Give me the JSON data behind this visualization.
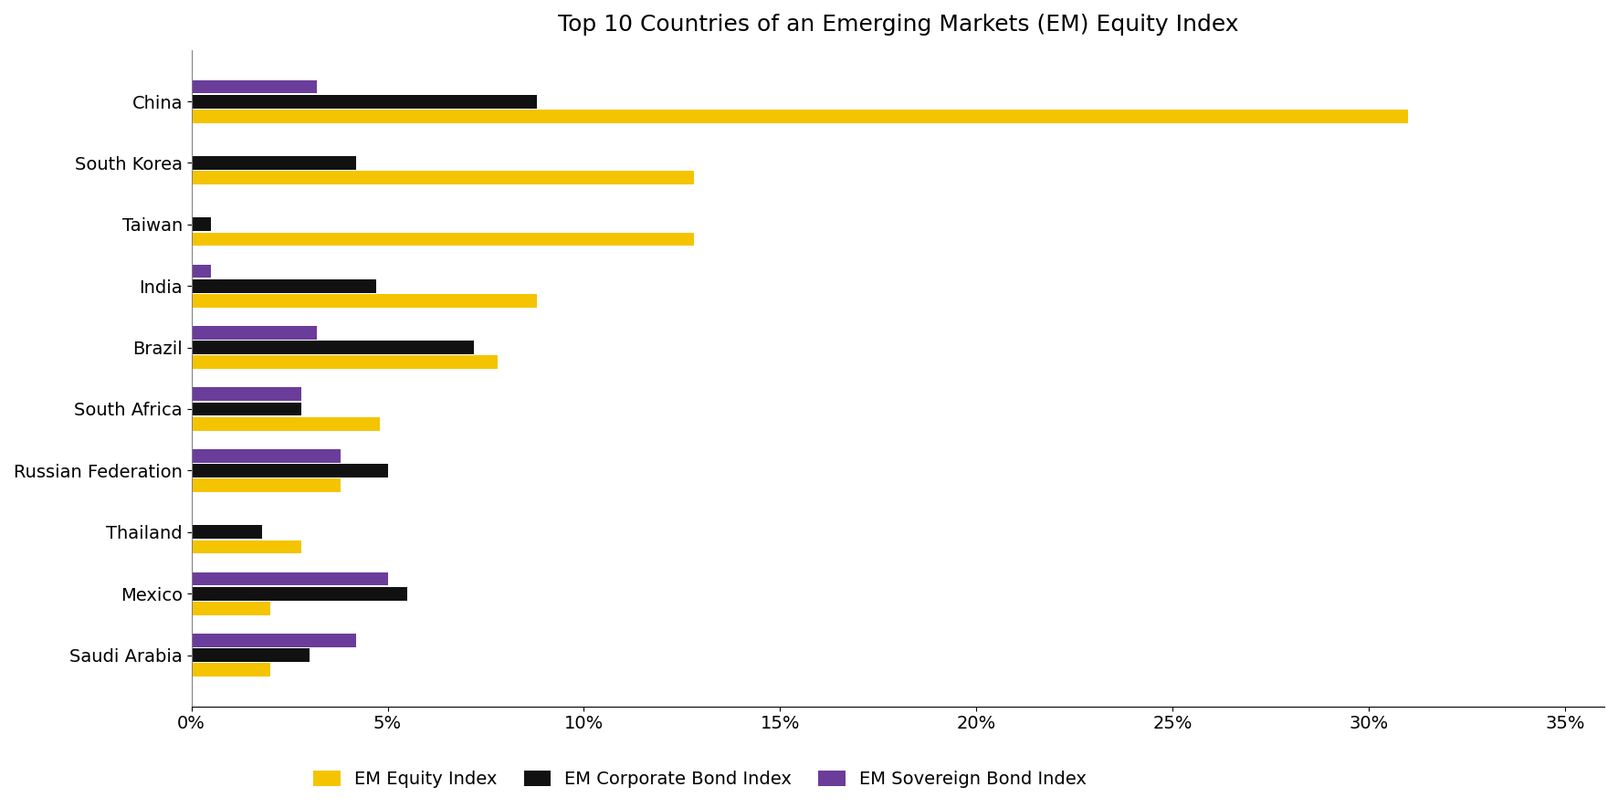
{
  "title": "Top 10 Countries of an Emerging Markets (EM) Equity Index",
  "countries": [
    "China",
    "South Korea",
    "Taiwan",
    "India",
    "Brazil",
    "South Africa",
    "Russian Federation",
    "Thailand",
    "Mexico",
    "Saudi Arabia"
  ],
  "em_equity": [
    0.31,
    0.128,
    0.128,
    0.088,
    0.078,
    0.048,
    0.038,
    0.028,
    0.02,
    0.02
  ],
  "em_corporate": [
    0.088,
    0.042,
    0.005,
    0.047,
    0.072,
    0.028,
    0.05,
    0.018,
    0.055,
    0.03
  ],
  "em_sovereign": [
    0.032,
    0.0,
    0.0,
    0.005,
    0.032,
    0.028,
    0.038,
    0.0,
    0.05,
    0.042
  ],
  "colors": {
    "em_equity": "#F5C400",
    "em_corporate": "#111111",
    "em_sovereign": "#6A3D9A"
  },
  "legend_labels": [
    "EM Equity Index",
    "EM Corporate Bond Index",
    "EM Sovereign Bond Index"
  ],
  "xlim": [
    0,
    0.36
  ],
  "xtick_vals": [
    0,
    0.05,
    0.1,
    0.15,
    0.2,
    0.25,
    0.3,
    0.35
  ],
  "background_color": "#FFFFFF",
  "title_fontsize": 18,
  "tick_fontsize": 14,
  "legend_fontsize": 14,
  "bar_height": 0.22,
  "bar_gap": 0.24
}
